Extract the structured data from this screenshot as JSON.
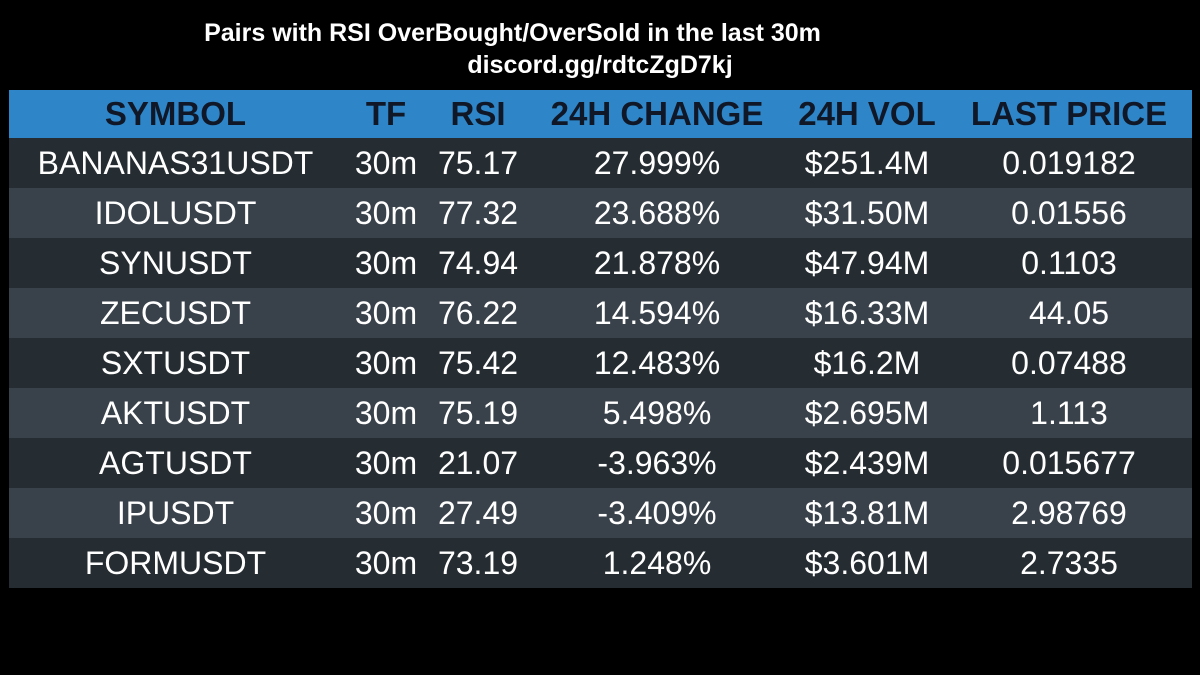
{
  "header": {
    "title": "Pairs with RSI OverBought/OverSold in the last 30m",
    "link": "discord.gg/rdtcZgD7kj"
  },
  "table": {
    "columns": [
      "SYMBOL",
      "TF",
      "RSI",
      "24H CHANGE",
      "24H VOL",
      "LAST PRICE"
    ],
    "rows": [
      [
        "BANANAS31USDT",
        "30m",
        "75.17",
        "27.999%",
        "$251.4M",
        "0.019182"
      ],
      [
        "IDOLUSDT",
        "30m",
        "77.32",
        "23.688%",
        "$31.50M",
        "0.01556"
      ],
      [
        "SYNUSDT",
        "30m",
        "74.94",
        "21.878%",
        "$47.94M",
        "0.1103"
      ],
      [
        "ZECUSDT",
        "30m",
        "76.22",
        "14.594%",
        "$16.33M",
        "44.05"
      ],
      [
        "SXTUSDT",
        "30m",
        "75.42",
        "12.483%",
        "$16.2M",
        "0.07488"
      ],
      [
        "AKTUSDT",
        "30m",
        "75.19",
        "5.498%",
        "$2.695M",
        "1.113"
      ],
      [
        "AGTUSDT",
        "30m",
        "21.07",
        "-3.963%",
        "$2.439M",
        "0.015677"
      ],
      [
        "IPUSDT",
        "30m",
        "27.49",
        "-3.409%",
        "$13.81M",
        "2.98769"
      ],
      [
        "FORMUSDT",
        "30m",
        "73.19",
        "1.248%",
        "$3.601M",
        "2.7335"
      ]
    ]
  },
  "colors": {
    "background": "#000000",
    "header_row": "#2e86c8",
    "header_text": "#101828",
    "row_dark": "#252c32",
    "row_light": "#39414a",
    "cell_text": "#ffffff"
  }
}
